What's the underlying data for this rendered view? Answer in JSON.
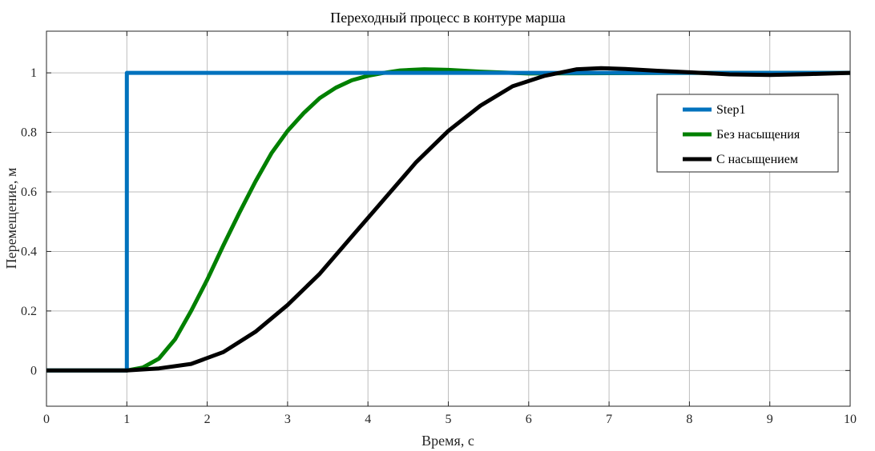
{
  "chart_data": {
    "type": "line",
    "title": "Переходный процесс в контуре марша",
    "xlabel": "Время, с",
    "ylabel": "Перемещение, м",
    "xlim": [
      0,
      10
    ],
    "ylim": [
      -0.12,
      1.14
    ],
    "xticks": [
      0,
      1,
      2,
      3,
      4,
      5,
      6,
      7,
      8,
      9,
      10
    ],
    "yticks": [
      0,
      0.2,
      0.4,
      0.6,
      0.8,
      1
    ],
    "xtick_labels": [
      "0",
      "1",
      "2",
      "3",
      "4",
      "5",
      "6",
      "7",
      "8",
      "9",
      "10"
    ],
    "ytick_labels": [
      "0",
      "0.2",
      "0.4",
      "0.6",
      "0.8",
      "1"
    ],
    "grid": true,
    "legend_position": "top-right",
    "series": [
      {
        "name": "Step1",
        "color": "#0072bd",
        "x": [
          0,
          1,
          1,
          10
        ],
        "y": [
          0,
          0,
          1,
          1
        ]
      },
      {
        "name": "Без насыщения",
        "color": "#008000",
        "x": [
          0,
          1,
          1.2,
          1.4,
          1.6,
          1.8,
          2.0,
          2.2,
          2.4,
          2.6,
          2.8,
          3.0,
          3.2,
          3.4,
          3.6,
          3.8,
          4.0,
          4.2,
          4.4,
          4.7,
          5.0,
          5.4,
          6.0,
          7.0,
          8.0,
          10
        ],
        "y": [
          0,
          0,
          0.01,
          0.04,
          0.105,
          0.2,
          0.305,
          0.42,
          0.53,
          0.635,
          0.73,
          0.805,
          0.865,
          0.915,
          0.95,
          0.975,
          0.99,
          1.0,
          1.008,
          1.012,
          1.01,
          1.004,
          0.998,
          0.999,
          1.0,
          1.0
        ]
      },
      {
        "name": "С насыщением",
        "color": "#000000",
        "x": [
          0,
          1,
          1.4,
          1.8,
          2.2,
          2.6,
          3.0,
          3.4,
          3.8,
          4.2,
          4.6,
          5.0,
          5.4,
          5.8,
          6.2,
          6.6,
          6.9,
          7.2,
          7.6,
          8.0,
          8.5,
          9.0,
          9.5,
          10
        ],
        "y": [
          0,
          0,
          0.007,
          0.022,
          0.062,
          0.13,
          0.22,
          0.325,
          0.45,
          0.575,
          0.7,
          0.805,
          0.89,
          0.955,
          0.99,
          1.012,
          1.016,
          1.013,
          1.007,
          1.002,
          0.995,
          0.993,
          0.996,
          1.0
        ]
      }
    ]
  }
}
